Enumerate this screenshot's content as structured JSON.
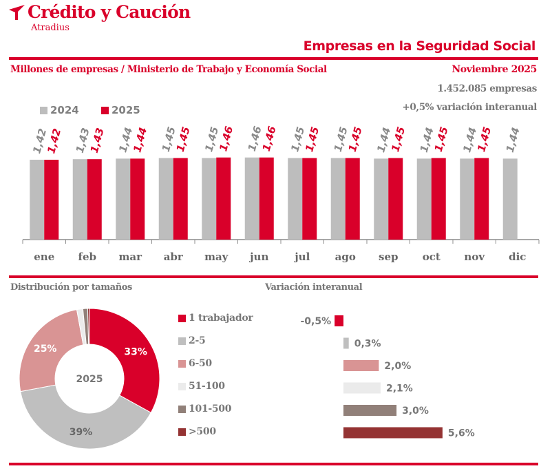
{
  "brand": {
    "name": "Crédito y Caución",
    "sub": "Atradius",
    "accent": "#d9002a"
  },
  "header": {
    "title": "Empresas en la Seguridad Social",
    "subtitle": "Millones de empresas / Ministerio de Trabajo y Economía Social",
    "date": "Noviembre 2025",
    "total": "1.452.085 empresas",
    "variation": "+0,5% variación interanual"
  },
  "sections": {
    "distribution_title": "Distribución por tamaños",
    "variation_title": "Variación interanual"
  },
  "chart_data": [
    {
      "type": "bar",
      "title": "Empresas en la Seguridad Social",
      "ylabel": "Millones de empresas",
      "xlabel": "",
      "categories": [
        "ene",
        "feb",
        "mar",
        "abr",
        "may",
        "jun",
        "jul",
        "ago",
        "sep",
        "oct",
        "nov",
        "dic"
      ],
      "series": [
        {
          "name": "2024",
          "color": "#bdbdbd",
          "label_color": "#8a8a8a",
          "values": [
            1.42,
            1.43,
            1.44,
            1.45,
            1.45,
            1.46,
            1.45,
            1.45,
            1.44,
            1.44,
            1.44,
            1.44
          ],
          "labels": [
            "1,42",
            "1,43",
            "1,44",
            "1,45",
            "1,45",
            "1,46",
            "1,45",
            "1,45",
            "1,44",
            "1,44",
            "1,44",
            "1,44"
          ]
        },
        {
          "name": "2025",
          "color": "#d9002a",
          "label_color": "#d9002a",
          "values": [
            1.42,
            1.43,
            1.44,
            1.45,
            1.46,
            1.46,
            1.45,
            1.45,
            1.45,
            1.45,
            1.45,
            null
          ],
          "labels": [
            "1,42",
            "1,43",
            "1,44",
            "1,45",
            "1,46",
            "1,46",
            "1,45",
            "1,45",
            "1,45",
            "1,45",
            "1,45",
            ""
          ]
        }
      ],
      "ylim": [
        0,
        1.46
      ],
      "grid": false,
      "legend": "top-left"
    },
    {
      "type": "pie",
      "title": "Distribución por tamaños",
      "center_label": "2025",
      "categories": [
        "1 trabajador",
        "2-5",
        "6-50",
        "51-100",
        "101-500",
        ">500"
      ],
      "values": [
        33,
        39,
        25,
        1.4,
        1.1,
        0.4
      ],
      "labels": [
        "33%",
        "39%",
        "25%",
        "",
        "",
        ""
      ],
      "colors": [
        "#d9002a",
        "#bfbfbf",
        "#d99494",
        "#ebebeb",
        "#918079",
        "#943333"
      ],
      "legend": "right"
    },
    {
      "type": "bar",
      "orientation": "horizontal",
      "title": "Variación interanual",
      "categories": [
        "1 trabajador",
        "2-5",
        "6-50",
        "51-100",
        "101-500",
        ">500"
      ],
      "values": [
        -0.5,
        0.3,
        2.0,
        2.1,
        3.0,
        5.6
      ],
      "labels": [
        "-0,5%",
        "0,3%",
        "2,0%",
        "2,1%",
        "3,0%",
        "5,6%"
      ],
      "colors": [
        "#d9002a",
        "#bfbfbf",
        "#d99494",
        "#ebebeb",
        "#918079",
        "#943333"
      ],
      "unit": "%"
    }
  ]
}
